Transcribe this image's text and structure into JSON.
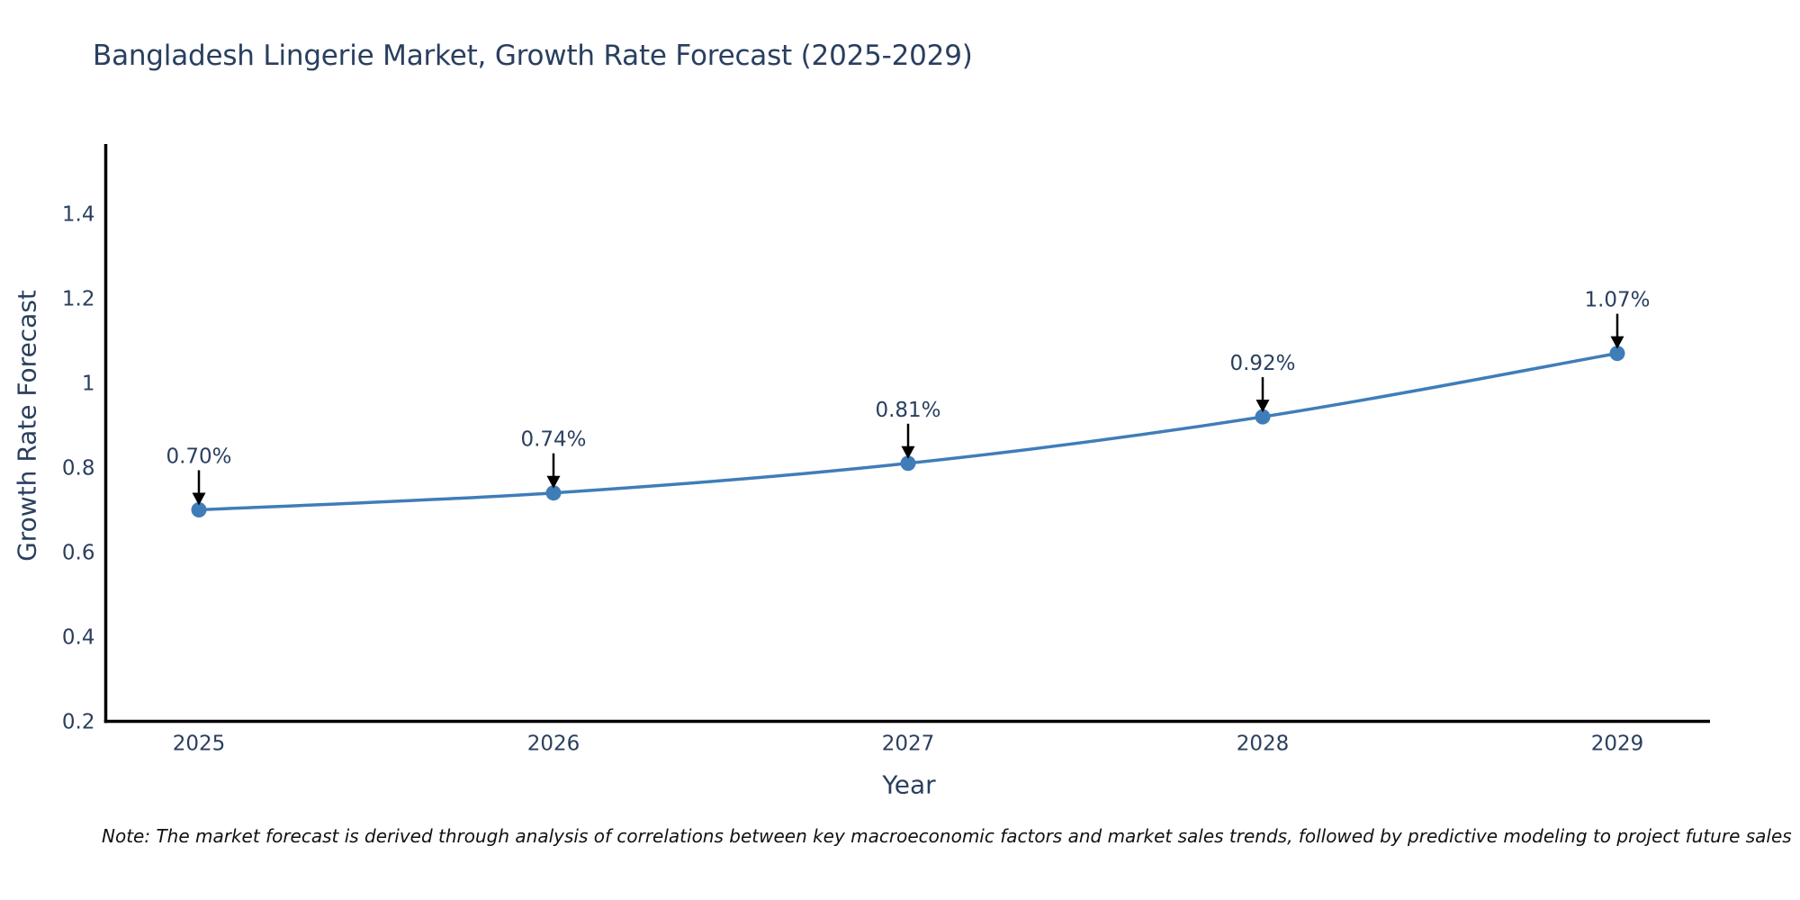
{
  "chart_data": {
    "type": "line",
    "title": "Bangladesh Lingerie Market, Growth Rate Forecast (2025-2029)",
    "xlabel": "Year",
    "ylabel": "Growth Rate Forecast",
    "categories": [
      "2025",
      "2026",
      "2027",
      "2028",
      "2029"
    ],
    "series": [
      {
        "name": "Growth Rate Forecast",
        "values": [
          0.7,
          0.74,
          0.81,
          0.92,
          1.07
        ],
        "point_labels": [
          "0.70%",
          "0.74%",
          "0.81%",
          "0.92%",
          "1.07%"
        ]
      }
    ],
    "ylim": [
      0.2,
      1.4
    ],
    "ytick_values": [
      0.2,
      0.4,
      0.6,
      0.8,
      1,
      1.2,
      1.4
    ],
    "ytick_labels": [
      "0.2",
      "0.4",
      "0.6",
      "0.8",
      "1",
      "1.2",
      "1.4"
    ],
    "grid": false,
    "legend_position": "none",
    "line_shape": "spline",
    "line_color": "#3f7db8",
    "marker_color": "#3f7db8",
    "axis_color": "#000000",
    "text_color": "#2a3f5f",
    "annotation_arrow_color": "#000000"
  },
  "note": {
    "text": "Note: The market forecast is derived through analysis of correlations between key macroeconomic factors and market sales trends, followed by predictive modeling to project future sales",
    "color": "#111111"
  }
}
